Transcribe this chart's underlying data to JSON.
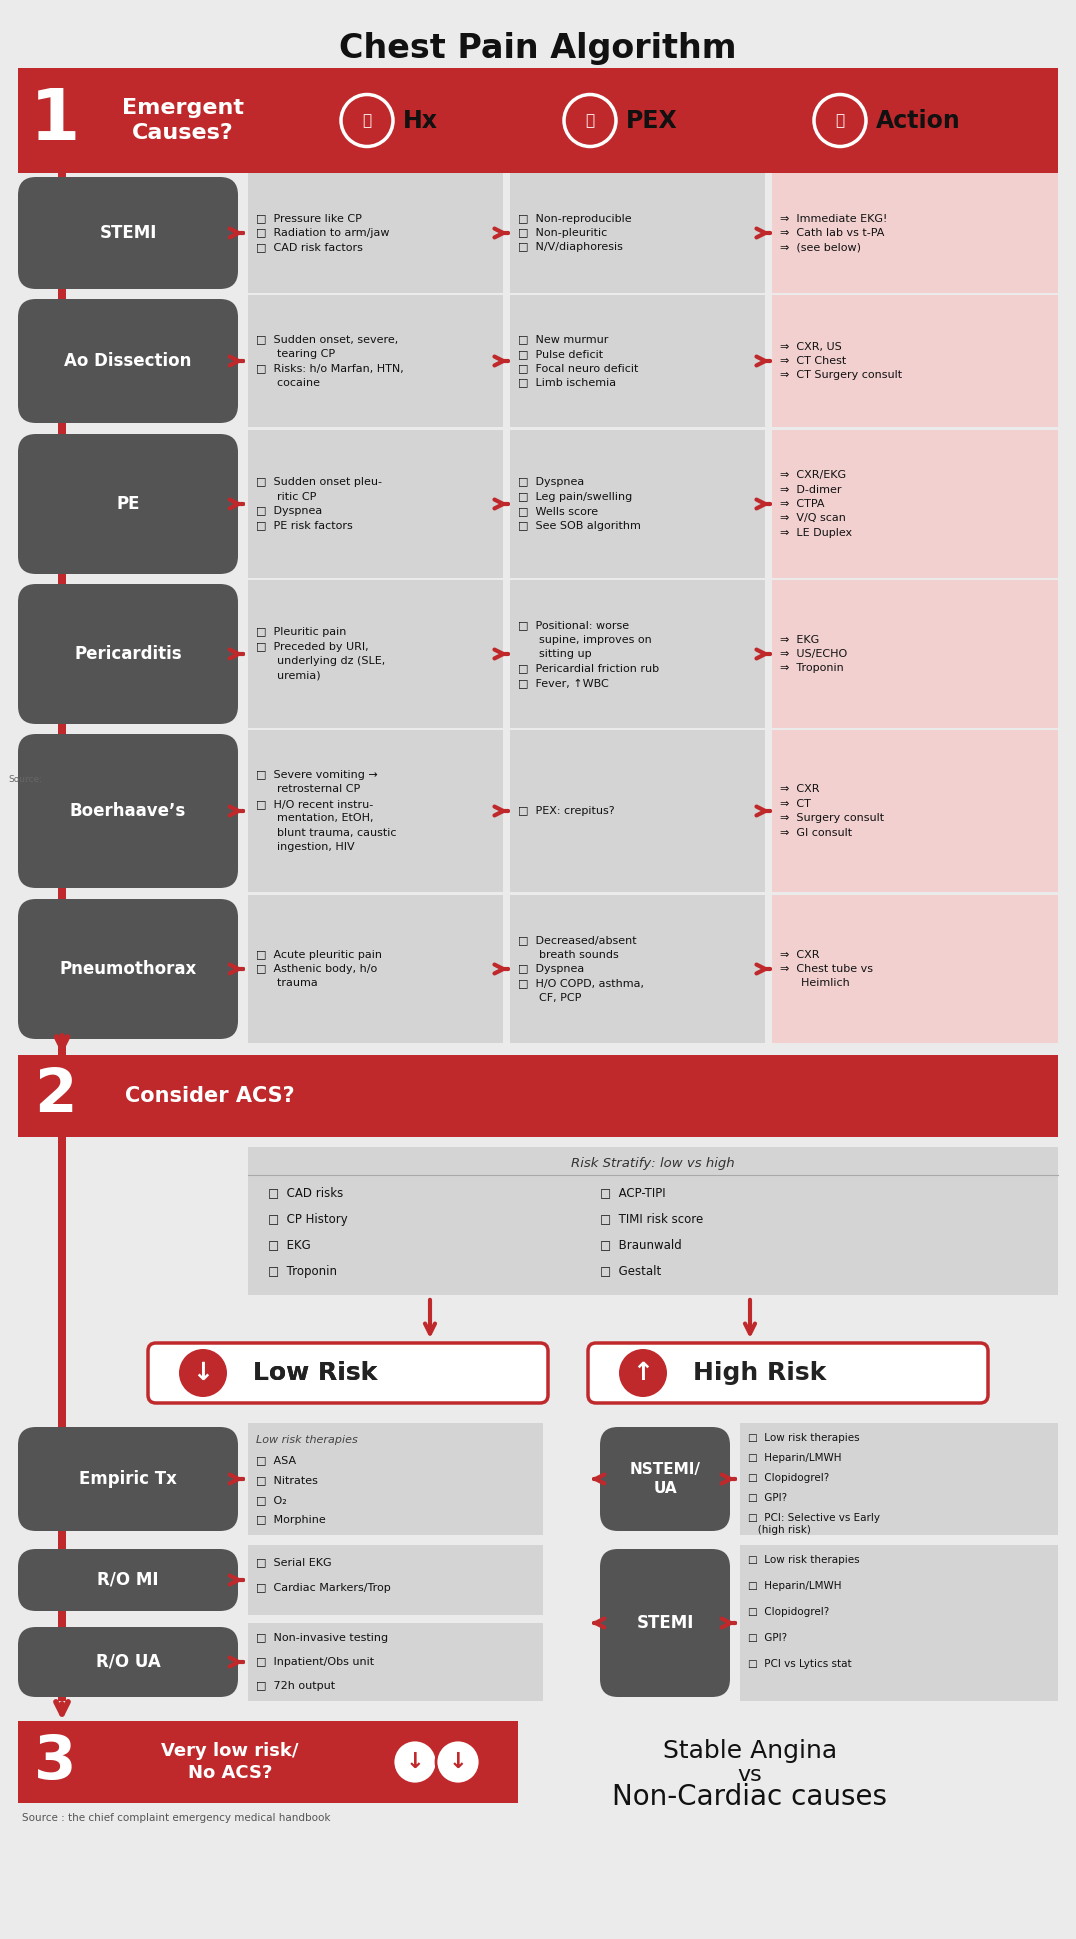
{
  "title": "Chest Pain Algorithm",
  "bg_color": "#ebebeb",
  "red": "#c0292b",
  "gray_box": "#545454",
  "light_gray": "#d4d4d4",
  "light_pink": "#f2d0d0",
  "white": "#ffffff",
  "rows": [
    {
      "label": "STEMI",
      "hx": "□  Pressure like CP\n□  Radiation to arm/jaw\n□  CAD risk factors",
      "pex": "□  Non-reproducible\n□  Non-pleuritic\n□  N/V/diaphoresis",
      "action": "⇒  Immediate EKG!\n⇒  Cath lab vs t-PA\n⇒  (see below)"
    },
    {
      "label": "Ao Dissection",
      "hx": "□  Sudden onset, severe,\n      tearing CP\n□  Risks: h/o Marfan, HTN,\n      cocaine",
      "pex": "□  New murmur\n□  Pulse deficit\n□  Focal neuro deficit\n□  Limb ischemia",
      "action": "⇒  CXR, US\n⇒  CT Chest\n⇒  CT Surgery consult"
    },
    {
      "label": "PE",
      "hx": "□  Sudden onset pleu-\n      ritic CP\n□  Dyspnea\n□  PE risk factors",
      "pex": "□  Dyspnea\n□  Leg pain/swelling\n□  Wells score\n□  See SOB algorithm",
      "action": "⇒  CXR/EKG\n⇒  D-dimer\n⇒  CTPA\n⇒  V/Q scan\n⇒  LE Duplex"
    },
    {
      "label": "Pericarditis",
      "hx": "□  Pleuritic pain\n□  Preceded by URI,\n      underlying dz (SLE,\n      uremia)",
      "pex": "□  Positional: worse\n      supine, improves on\n      sitting up\n□  Pericardial friction rub\n□  Fever, ↑WBC",
      "action": "⇒  EKG\n⇒  US/ECHO\n⇒  Troponin"
    },
    {
      "label": "Boerhaave’s",
      "hx": "□  Severe vomiting →\n      retrosternal CP\n□  H/O recent instru-\n      mentation, EtOH,\n      blunt trauma, caustic\n      ingestion, HIV",
      "pex": "□  PEX: crepitus?",
      "action": "⇒  CXR\n⇒  CT\n⇒  Surgery consult\n⇒  GI consult"
    },
    {
      "label": "Pneumothorax",
      "hx": "□  Acute pleuritic pain\n□  Asthenic body, h/o\n      trauma",
      "pex": "□  Decreased/absent\n      breath sounds\n□  Dyspnea\n□  H/O COPD, asthma,\n      CF, PCP",
      "action": "⇒  CXR\n⇒  Chest tube vs\n      Heimlich"
    }
  ],
  "acs_left": [
    "CAD risks",
    "CP History",
    "EKG",
    "Troponin"
  ],
  "acs_right": [
    "ACP-TIPI",
    "TIMI risk score",
    "Braunwald",
    "Gestalt"
  ],
  "empiric_items": [
    "ASA",
    "Nitrates",
    "O₂",
    "Morphine"
  ],
  "nstemi_items": [
    "Low risk therapies",
    "Heparin/LMWH",
    "Clopidogrel?",
    "GPI?",
    "PCI: Selective vs Early\n   (high risk)"
  ],
  "romi_items": [
    "Serial EKG",
    "Cardiac Markers/Trop"
  ],
  "roua_items": [
    "Non-invasive testing",
    "Inpatient/Obs unit",
    "72h output"
  ],
  "stemi2_items": [
    "Low risk therapies",
    "Heparin/LMWH",
    "Clopidogrel?",
    "GPI?",
    "PCI vs Lytics stat"
  ],
  "source_text": "Source : the chief complaint emergency medical handbook",
  "bottom_text1": "Stable Angina",
  "bottom_text2": "vs",
  "bottom_text3": "Non-Cardiac causes"
}
